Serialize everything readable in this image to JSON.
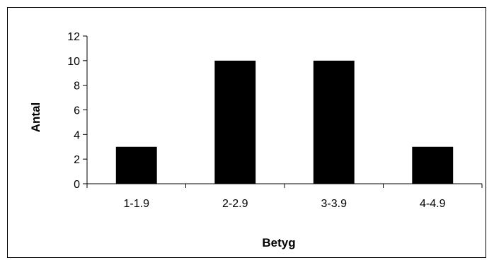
{
  "chart_data": {
    "type": "bar",
    "categories": [
      "1-1.9",
      "2-2.9",
      "3-3.9",
      "4-4.9"
    ],
    "values": [
      3,
      10,
      10,
      3
    ],
    "title": "",
    "xlabel": "Betyg",
    "ylabel": "Antal",
    "ylim": [
      0,
      12
    ],
    "yticks": [
      "0",
      "2",
      "4",
      "6",
      "8",
      "10",
      "12"
    ],
    "grid": false,
    "legend": "none",
    "bar_color": "#000000"
  }
}
